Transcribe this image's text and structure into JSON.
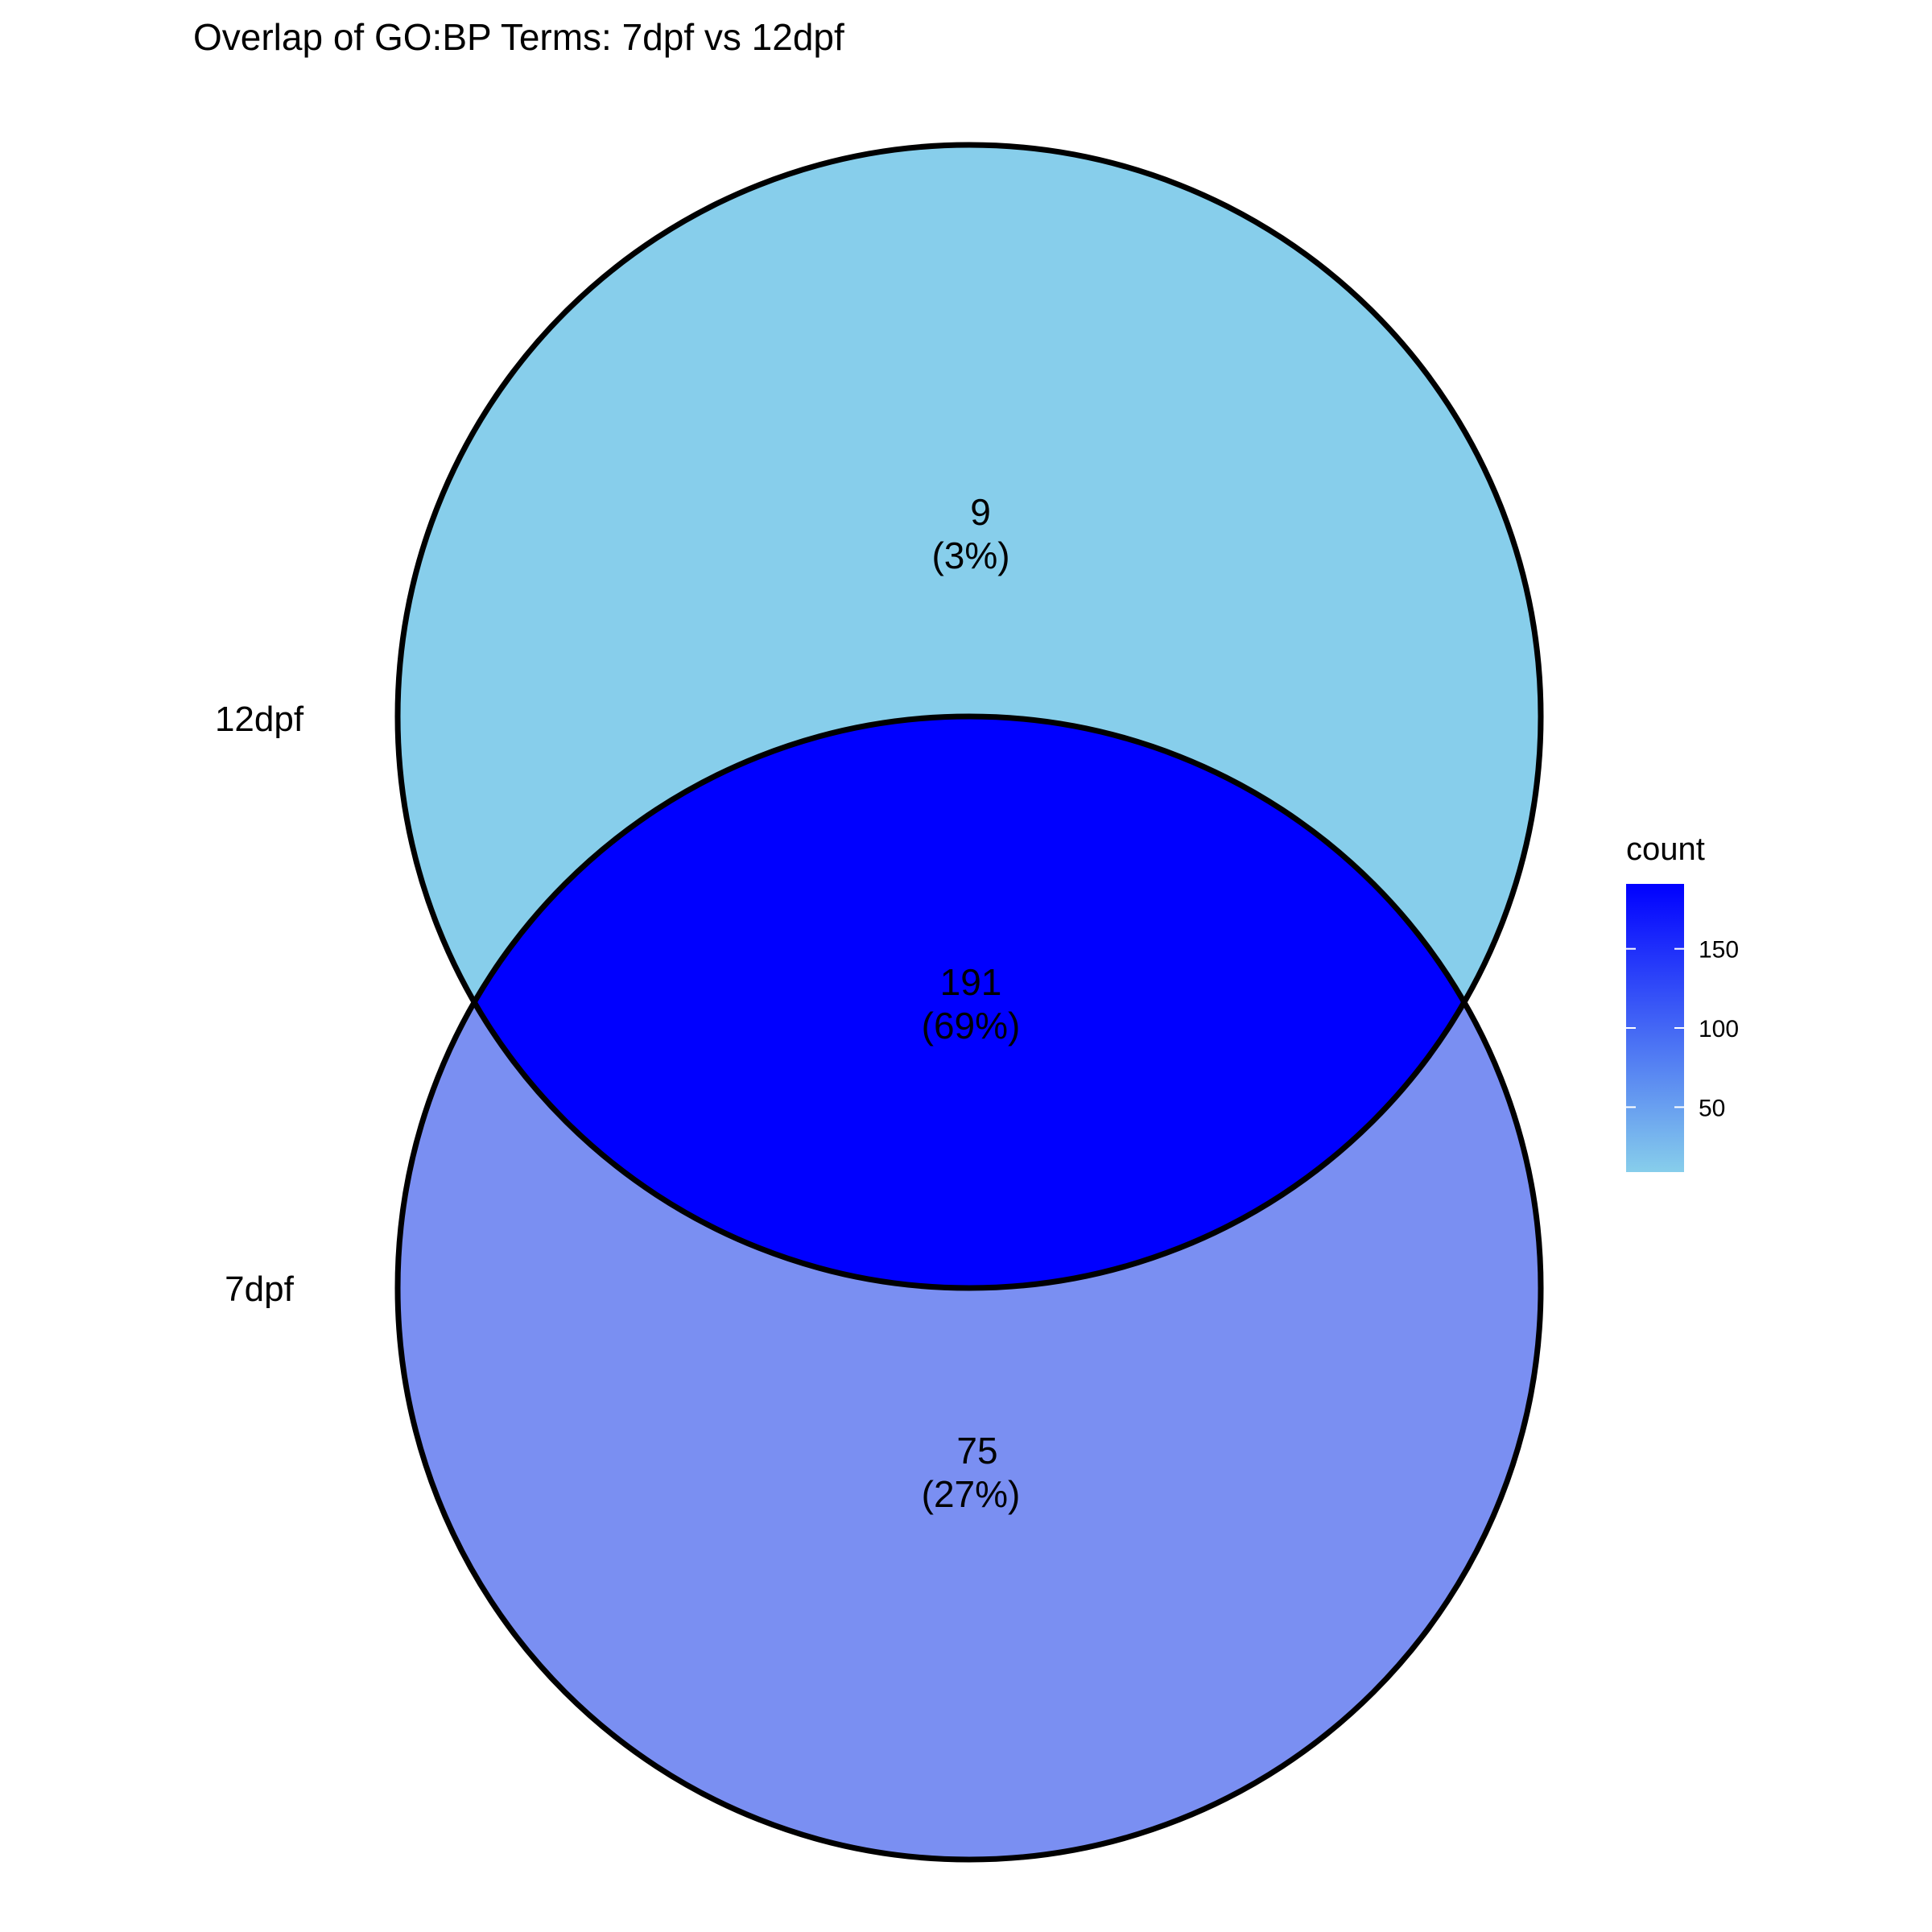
{
  "chart_data": {
    "type": "venn",
    "title": "Overlap of GO:BP Terms: 7dpf vs 12dpf",
    "sets": [
      {
        "name": "12dpf",
        "label": "12dpf"
      },
      {
        "name": "7dpf",
        "label": "7dpf"
      }
    ],
    "regions": [
      {
        "id": "only_12dpf",
        "sets": [
          "12dpf"
        ],
        "count": 9,
        "count_label": "9",
        "percent_label": "(3%)",
        "fill": "#87CEEB"
      },
      {
        "id": "intersection",
        "sets": [
          "12dpf",
          "7dpf"
        ],
        "count": 191,
        "count_label": "191",
        "percent_label": "(69%)",
        "fill": "#0000FF"
      },
      {
        "id": "only_7dpf",
        "sets": [
          "7dpf"
        ],
        "count": 75,
        "count_label": "75",
        "percent_label": "(27%)",
        "fill": "#7A8FF2"
      }
    ],
    "legend": {
      "title": "count",
      "position": "right",
      "min": 9,
      "max": 191,
      "low_color": "#87CEEB",
      "high_color": "#0000FF",
      "ticks": [
        {
          "value": 50,
          "label": "50"
        },
        {
          "value": 100,
          "label": "100"
        },
        {
          "value": 150,
          "label": "150"
        }
      ]
    },
    "outline_color": "#000000"
  }
}
